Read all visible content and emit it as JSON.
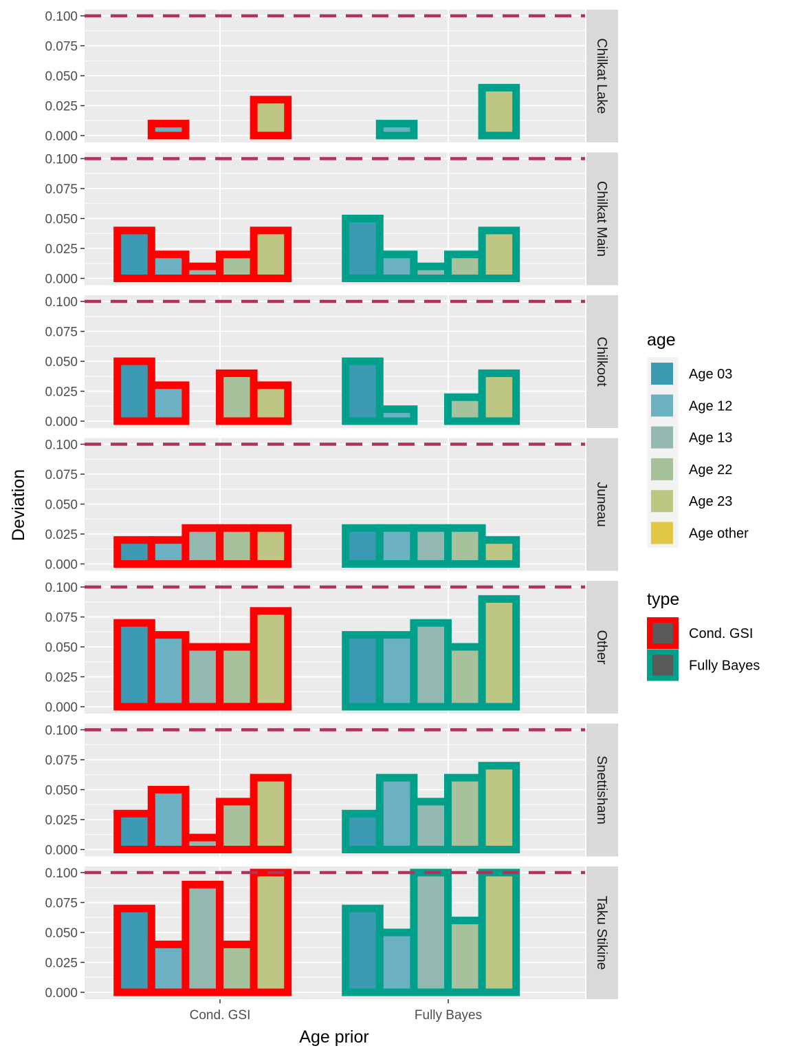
{
  "chart_data": {
    "type": "bar",
    "xlabel": "Age prior",
    "ylabel": "Deviation",
    "ylim": [
      0,
      0.1
    ],
    "y_ticks": [
      "0.000",
      "0.025",
      "0.050",
      "0.075",
      "0.100"
    ],
    "reference_line": 0.1,
    "x_categories": [
      "Cond. GSI",
      "Fully Bayes"
    ],
    "ages": [
      "Age 03",
      "Age 12",
      "Age 13",
      "Age 22",
      "Age 23",
      "Age other"
    ],
    "age_colors": [
      "#3C9AB2",
      "#6BB1C1",
      "#93B8B0",
      "#A7C19C",
      "#BEC684",
      "#DFC644"
    ],
    "types": [
      "Cond. GSI",
      "Fully Bayes"
    ],
    "type_colors": [
      "#FF0000",
      "#00A08A"
    ],
    "reference_line_color": "#B2335A",
    "legend": {
      "age_title": "age",
      "type_title": "type"
    },
    "facets": [
      {
        "label": "Chilkat Lake",
        "series": [
          {
            "type": "Cond. GSI",
            "values": [
              0,
              0.01,
              0,
              0,
              0.03,
              0
            ]
          },
          {
            "type": "Fully Bayes",
            "values": [
              0,
              0.01,
              0,
              0,
              0.04,
              0
            ]
          }
        ]
      },
      {
        "label": "Chilkat Main",
        "series": [
          {
            "type": "Cond. GSI",
            "values": [
              0.04,
              0.02,
              0.01,
              0.02,
              0.04,
              0
            ]
          },
          {
            "type": "Fully Bayes",
            "values": [
              0.05,
              0.02,
              0.01,
              0.02,
              0.04,
              0
            ]
          }
        ]
      },
      {
        "label": "Chilkoot",
        "series": [
          {
            "type": "Cond. GSI",
            "values": [
              0.05,
              0.03,
              0,
              0.04,
              0.03,
              0
            ]
          },
          {
            "type": "Fully Bayes",
            "values": [
              0.05,
              0.01,
              0,
              0.02,
              0.04,
              0
            ]
          }
        ]
      },
      {
        "label": "Juneau",
        "series": [
          {
            "type": "Cond. GSI",
            "values": [
              0.02,
              0.02,
              0.03,
              0.03,
              0.03,
              0
            ]
          },
          {
            "type": "Fully Bayes",
            "values": [
              0.03,
              0.03,
              0.03,
              0.03,
              0.02,
              0
            ]
          }
        ]
      },
      {
        "label": "Other",
        "series": [
          {
            "type": "Cond. GSI",
            "values": [
              0.07,
              0.06,
              0.05,
              0.05,
              0.08,
              0
            ]
          },
          {
            "type": "Fully Bayes",
            "values": [
              0.06,
              0.06,
              0.07,
              0.05,
              0.09,
              0
            ]
          }
        ]
      },
      {
        "label": "Snettisham",
        "series": [
          {
            "type": "Cond. GSI",
            "values": [
              0.03,
              0.05,
              0.01,
              0.04,
              0.06,
              0
            ]
          },
          {
            "type": "Fully Bayes",
            "values": [
              0.03,
              0.06,
              0.04,
              0.06,
              0.07,
              0
            ]
          }
        ]
      },
      {
        "label": "Taku Stikine",
        "series": [
          {
            "type": "Cond. GSI",
            "values": [
              0.07,
              0.04,
              0.09,
              0.04,
              0.1,
              0
            ]
          },
          {
            "type": "Fully Bayes",
            "values": [
              0.07,
              0.05,
              0.1,
              0.06,
              0.1,
              0
            ]
          }
        ]
      }
    ]
  }
}
